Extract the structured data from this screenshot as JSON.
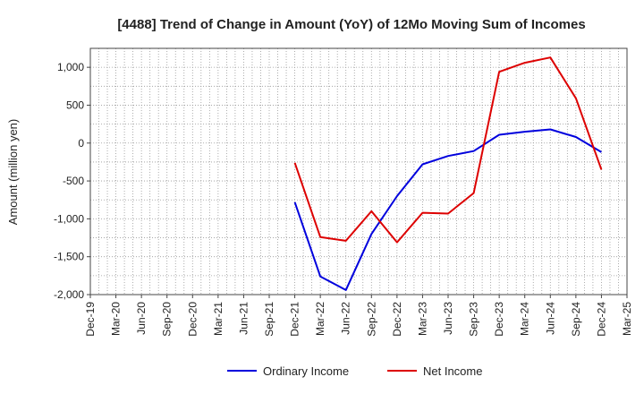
{
  "chart_data": {
    "type": "line",
    "title": "[4488]  Trend of Change in Amount (YoY) of 12Mo Moving Sum of Incomes",
    "xlabel": "",
    "ylabel": "Amount (million yen)",
    "ylim": [
      -2000,
      1250
    ],
    "y_ticks": [
      1000,
      500,
      0,
      -500,
      -1000,
      -1500,
      -2000
    ],
    "y_tick_labels": [
      "1,000",
      "500",
      "0",
      "-500",
      "-1,000",
      "-1,500",
      "-2,000"
    ],
    "x_tick_labels": [
      "Dec-19",
      "Mar-20",
      "Jun-20",
      "Sep-20",
      "Dec-20",
      "Mar-21",
      "Jun-21",
      "Sep-21",
      "Dec-21",
      "Mar-22",
      "Jun-22",
      "Sep-22",
      "Dec-22",
      "Mar-23",
      "Jun-23",
      "Sep-23",
      "Dec-23",
      "Mar-24",
      "Jun-24",
      "Sep-24",
      "Dec-24",
      "Mar-25"
    ],
    "grid": true,
    "legend_position": "bottom",
    "series": [
      {
        "name": "Ordinary Income",
        "color": "#0000dd",
        "x": [
          "Dec-21",
          "Mar-22",
          "Jun-22",
          "Sep-22",
          "Dec-22",
          "Mar-23",
          "Jun-23",
          "Sep-23",
          "Dec-23",
          "Mar-24",
          "Jun-24",
          "Sep-24",
          "Dec-24"
        ],
        "values": [
          -780,
          -1760,
          -1940,
          -1200,
          -700,
          -280,
          -170,
          -105,
          110,
          150,
          180,
          80,
          -120
        ]
      },
      {
        "name": "Net Income",
        "color": "#dd0000",
        "x": [
          "Dec-21",
          "Mar-22",
          "Jun-22",
          "Sep-22",
          "Dec-22",
          "Mar-23",
          "Jun-23",
          "Sep-23",
          "Dec-23",
          "Mar-24",
          "Jun-24",
          "Sep-24",
          "Dec-24"
        ],
        "values": [
          -260,
          -1240,
          -1290,
          -900,
          -1310,
          -920,
          -930,
          -660,
          940,
          1060,
          1130,
          590,
          -350
        ]
      }
    ]
  }
}
